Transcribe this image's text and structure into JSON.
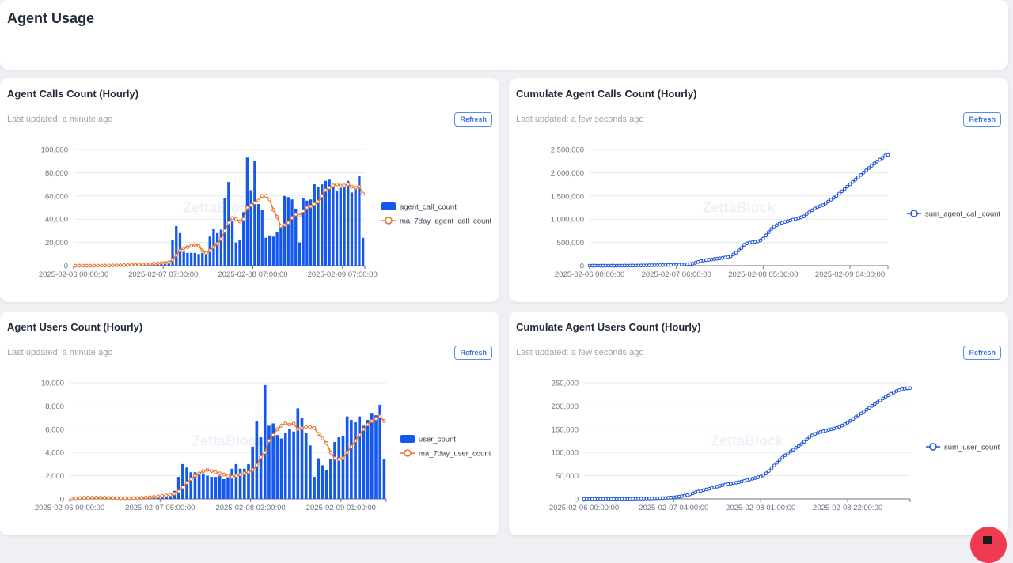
{
  "page": {
    "title": "Agent Usage",
    "watermark": "ZettaBlock"
  },
  "colors": {
    "bar": "#1558ee",
    "ma": "#e8742a",
    "cum": "#1f55d8"
  },
  "cards": [
    {
      "title": "Agent Calls Count (Hourly)",
      "updated": "Last updated: a minute ago",
      "refresh": "Refresh"
    },
    {
      "title": "Cumulate Agent Calls Count (Hourly)",
      "updated": "Last updated: a few seconds ago",
      "refresh": "Refresh"
    },
    {
      "title": "Agent Users Count (Hourly)",
      "updated": "Last updated: a minute ago",
      "refresh": "Refresh"
    },
    {
      "title": "Cumulate Agent Users Count (Hourly)",
      "updated": "Last updated: a few seconds ago",
      "refresh": "Refresh"
    }
  ],
  "chart_data": [
    {
      "type": "bar+line",
      "title": "Agent Calls Count (Hourly)",
      "ylim": [
        0,
        100000
      ],
      "y_ticks": [
        "0",
        "20,000",
        "40,000",
        "60,000",
        "80,000",
        "100,000"
      ],
      "x_ticks": [
        {
          "index": 0,
          "label": "2025-02-06 00:00:00"
        },
        {
          "index": 24,
          "label": "2025-02-07 07:00:00"
        },
        {
          "index": 48,
          "label": "2025-02-08 07:00:00"
        },
        {
          "index": 72,
          "label": "2025-02-09 07:00:00"
        }
      ],
      "legend": "right",
      "series": [
        {
          "name": "agent_call_count",
          "kind": "bar",
          "values": [
            0,
            0,
            0,
            0,
            0,
            0,
            100,
            100,
            200,
            200,
            300,
            400,
            500,
            600,
            700,
            800,
            1000,
            1200,
            1400,
            1600,
            1900,
            2200,
            2500,
            2800,
            3000,
            3500,
            22000,
            34000,
            28000,
            12000,
            11000,
            11000,
            11000,
            10000,
            11000,
            12000,
            25000,
            32000,
            28000,
            31000,
            58000,
            72000,
            38000,
            20000,
            22000,
            46000,
            93000,
            65000,
            90000,
            53000,
            48000,
            24000,
            26000,
            25000,
            29000,
            33000,
            60000,
            59000,
            57000,
            49000,
            20000,
            58000,
            56000,
            57000,
            70000,
            68000,
            70000,
            73000,
            74000,
            68000,
            64000,
            67000,
            70000,
            73000,
            63000,
            66000,
            77000,
            24000
          ]
        },
        {
          "name": "ma_7day_agent_call_count",
          "kind": "line",
          "values": [
            0,
            0,
            0,
            0,
            0,
            0,
            50,
            80,
            100,
            150,
            200,
            300,
            350,
            450,
            550,
            650,
            800,
            950,
            1100,
            1300,
            1500,
            1700,
            2000,
            2300,
            2600,
            2900,
            5000,
            9000,
            13000,
            15000,
            16000,
            17000,
            18000,
            17000,
            13000,
            11000,
            13000,
            16000,
            19000,
            23000,
            30000,
            37000,
            41000,
            40000,
            38000,
            40000,
            50000,
            52000,
            54000,
            56000,
            60000,
            60000,
            57000,
            48000,
            42000,
            34000,
            35000,
            37000,
            41000,
            44000,
            43000,
            47000,
            50000,
            51000,
            53000,
            55000,
            60000,
            65000,
            67000,
            69000,
            70000,
            69000,
            69000,
            70000,
            68000,
            67000,
            68000,
            62000
          ]
        }
      ]
    },
    {
      "type": "line",
      "title": "Cumulate Agent Calls Count (Hourly)",
      "ylim": [
        0,
        2500000
      ],
      "y_ticks": [
        "0",
        "500,000",
        "1,000,000",
        "1,500,000",
        "2,000,000",
        "2,500,000"
      ],
      "x_ticks": [
        {
          "index": 0,
          "label": "2025-02-06 00:00:00"
        },
        {
          "index": 32,
          "label": "2025-02-07 06:00:00"
        },
        {
          "index": 64,
          "label": "2025-02-08 05:00:00"
        },
        {
          "index": 96,
          "label": "2025-02-09 04:00:00"
        }
      ],
      "legend": "right",
      "series": [
        {
          "name": "sum_agent_call_count",
          "kind": "line",
          "values": [
            0,
            0,
            0,
            0,
            0,
            0,
            0,
            0,
            0,
            0,
            500,
            800,
            1000,
            1500,
            2000,
            2500,
            3000,
            3500,
            4000,
            5000,
            6000,
            7000,
            8000,
            9000,
            10000,
            11000,
            12000,
            13000,
            14000,
            15000,
            17000,
            19000,
            20000,
            22000,
            25000,
            28000,
            32000,
            36000,
            40000,
            60000,
            80000,
            100000,
            110000,
            120000,
            128000,
            135000,
            142000,
            150000,
            158000,
            167000,
            176000,
            188000,
            200000,
            240000,
            280000,
            330000,
            380000,
            450000,
            480000,
            495000,
            505000,
            515000,
            525000,
            545000,
            580000,
            650000,
            720000,
            790000,
            840000,
            870000,
            900000,
            920000,
            940000,
            955000,
            970000,
            990000,
            1005000,
            1020000,
            1040000,
            1060000,
            1110000,
            1150000,
            1190000,
            1230000,
            1260000,
            1280000,
            1300000,
            1340000,
            1380000,
            1420000,
            1460000,
            1500000,
            1550000,
            1600000,
            1650000,
            1700000,
            1750000,
            1800000,
            1850000,
            1900000,
            1950000,
            2000000,
            2050000,
            2100000,
            2150000,
            2200000,
            2240000,
            2280000,
            2320000,
            2370000,
            2380000
          ]
        }
      ]
    },
    {
      "type": "bar+line",
      "title": "Agent Users Count (Hourly)",
      "ylim": [
        0,
        10000
      ],
      "y_ticks": [
        "0",
        "2,000",
        "4,000",
        "6,000",
        "8,000",
        "10,000"
      ],
      "x_ticks": [
        {
          "index": 0,
          "label": "2025-02-06 00:00:00"
        },
        {
          "index": 22,
          "label": "2025-02-07 05:00:00"
        },
        {
          "index": 44,
          "label": "2025-02-08 03:00:00"
        },
        {
          "index": 66,
          "label": "2025-02-09 01:00:00"
        }
      ],
      "legend": "right",
      "series": [
        {
          "name": "user_count",
          "kind": "bar",
          "values": [
            50,
            80,
            100,
            150,
            120,
            100,
            150,
            120,
            100,
            80,
            60,
            50,
            50,
            50,
            60,
            80,
            100,
            120,
            150,
            200,
            250,
            300,
            350,
            400,
            450,
            700,
            1900,
            3000,
            2700,
            2300,
            2300,
            2300,
            2200,
            2000,
            1900,
            1900,
            2000,
            1700,
            1800,
            2600,
            3000,
            2600,
            2600,
            3000,
            4500,
            6700,
            5300,
            9800,
            6300,
            6500,
            5500,
            5200,
            5700,
            6000,
            5800,
            7800,
            7000,
            5700,
            4600,
            1900,
            3500,
            2900,
            2500,
            3400,
            4900,
            5300,
            5400,
            7100,
            6800,
            6600,
            7100,
            6300,
            6800,
            7400,
            7200,
            8100,
            3400
          ]
        },
        {
          "name": "ma_7day_user_count",
          "kind": "line",
          "values": [
            50,
            60,
            80,
            100,
            110,
            110,
            110,
            110,
            100,
            90,
            80,
            70,
            60,
            60,
            60,
            70,
            80,
            100,
            120,
            150,
            180,
            220,
            260,
            300,
            350,
            450,
            650,
            1000,
            1400,
            1700,
            2000,
            2200,
            2400,
            2500,
            2400,
            2300,
            2200,
            2100,
            2000,
            1900,
            2000,
            2100,
            2200,
            2300,
            2500,
            2900,
            3600,
            4000,
            5000,
            5500,
            6000,
            6300,
            6500,
            6400,
            6500,
            6000,
            6100,
            6200,
            6200,
            6100,
            5600,
            5200,
            4800,
            4000,
            3500,
            3400,
            3500,
            4000,
            4500,
            5000,
            5500,
            6000,
            6400,
            6700,
            6900,
            7100,
            6700
          ]
        }
      ]
    },
    {
      "type": "line",
      "title": "Cumulate Agent Users Count (Hourly)",
      "ylim": [
        0,
        250000
      ],
      "y_ticks": [
        "0",
        "50,000",
        "100,000",
        "150,000",
        "200,000",
        "250,000"
      ],
      "x_ticks": [
        {
          "index": 0,
          "label": "2025-02-06 00:00:00"
        },
        {
          "index": 33,
          "label": "2025-02-07 04:00:00"
        },
        {
          "index": 65,
          "label": "2025-02-08 01:00:00"
        },
        {
          "index": 97,
          "label": "2025-02-08 22:00:00"
        }
      ],
      "legend": "right",
      "series": [
        {
          "name": "sum_user_count",
          "kind": "line",
          "values": [
            0,
            0,
            0,
            0,
            0,
            0,
            0,
            0,
            0,
            0,
            0,
            0,
            100,
            100,
            200,
            200,
            300,
            300,
            400,
            500,
            600,
            700,
            800,
            900,
            1000,
            1100,
            1200,
            1400,
            1600,
            1800,
            2000,
            2500,
            3000,
            3500,
            4000,
            5000,
            6000,
            7000,
            8000,
            10000,
            12000,
            14000,
            16000,
            17500,
            19000,
            20500,
            22000,
            23500,
            25000,
            26500,
            28000,
            29500,
            31000,
            32000,
            33000,
            34000,
            35000,
            36000,
            37500,
            39000,
            40500,
            42000,
            43500,
            45000,
            46500,
            48000,
            51000,
            55000,
            60000,
            66000,
            72000,
            78000,
            84000,
            89000,
            94000,
            98000,
            102000,
            106000,
            110000,
            114000,
            118000,
            123000,
            128000,
            133000,
            137000,
            140000,
            142000,
            144000,
            145500,
            147000,
            148500,
            150000,
            151500,
            153000,
            155000,
            158000,
            161000,
            164000,
            168000,
            172000,
            176000,
            180000,
            184000,
            188000,
            192000,
            196000,
            200000,
            204000,
            208000,
            212000,
            216000,
            220000,
            223000,
            226000,
            229000,
            232000,
            234000,
            236000,
            237000,
            238000,
            238500
          ]
        }
      ]
    }
  ]
}
